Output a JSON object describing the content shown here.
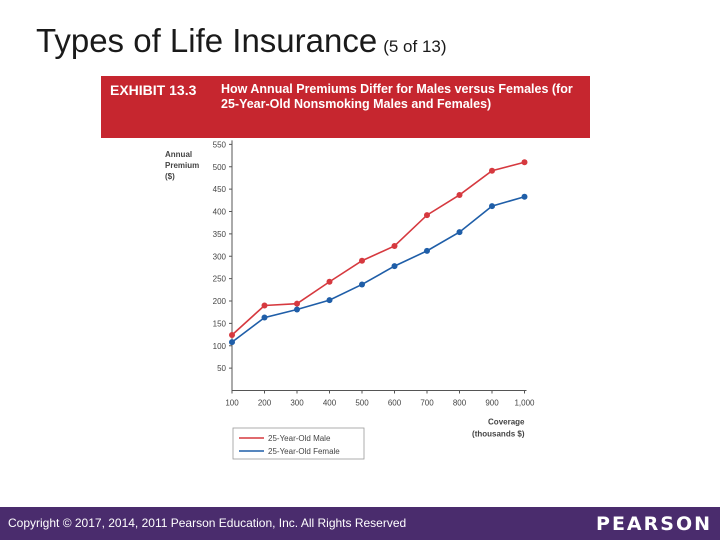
{
  "slide": {
    "title": "Types of Life Insurance",
    "subtitle": "(5 of 13)"
  },
  "exhibit": {
    "label": "EXHIBIT 13.3",
    "title": "How Annual Premiums Differ for Males versus Females (for 25-Year-Old Nonsmoking Males and Females)"
  },
  "chart_data": {
    "type": "line",
    "ylabel_lines": [
      "Annual",
      "Premium",
      "($)"
    ],
    "xlabel_lines": [
      "Coverage",
      "(thousands $)"
    ],
    "x": [
      100,
      200,
      300,
      400,
      500,
      600,
      700,
      800,
      900,
      1000
    ],
    "x_tick_labels": [
      "100",
      "200",
      "300",
      "400",
      "500",
      "600",
      "700",
      "800",
      "900",
      "1,000"
    ],
    "y_ticks": [
      50,
      100,
      150,
      200,
      250,
      300,
      350,
      400,
      450,
      500,
      550
    ],
    "ylim": [
      0,
      550
    ],
    "series": [
      {
        "name": "25-Year-Old Male",
        "color": "#d6393f",
        "values": [
          124,
          190,
          194,
          243,
          290,
          323,
          392,
          437,
          491,
          510
        ]
      },
      {
        "name": "25-Year-Old Female",
        "color": "#1f5ea8",
        "values": [
          108,
          163,
          181,
          202,
          237,
          278,
          312,
          354,
          412,
          433
        ]
      }
    ],
    "legend_position": "bottom-left"
  },
  "footer": {
    "copyright": "Copyright © 2017, 2014, 2011 Pearson Education, Inc. All Rights Reserved",
    "logo": "PEARSON"
  }
}
